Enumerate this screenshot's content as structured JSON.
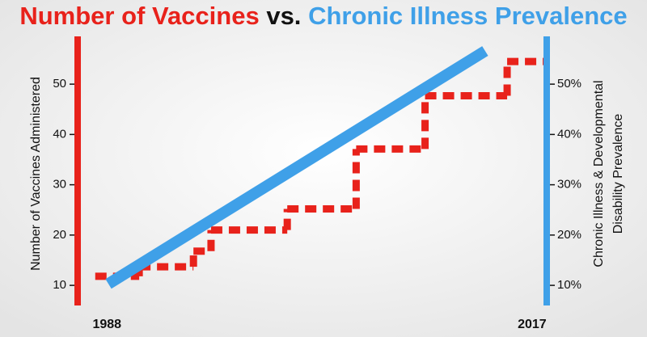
{
  "chart_data": {
    "type": "line",
    "title": [
      "Number of Vaccines",
      "vs.",
      "Chronic Illness Prevalence"
    ],
    "ylabel": "Number of Vaccines Administered",
    "y2label": [
      "Chronic Illness & Developmental",
      "Disability Prevalence"
    ],
    "xlim": [
      1986,
      2018
    ],
    "xticks": [
      1988,
      2017
    ],
    "ylim": [
      6,
      59.5
    ],
    "yticks": [
      10,
      20,
      30,
      40,
      50
    ],
    "y2lim": [
      6,
      59.5
    ],
    "y2ticks": [
      {
        "value": 10,
        "label": "10%"
      },
      {
        "value": 20,
        "label": "20%"
      },
      {
        "value": 30,
        "label": "30%"
      },
      {
        "value": 40,
        "label": "40%"
      },
      {
        "value": 50,
        "label": "50%"
      }
    ],
    "series": [
      {
        "name": "Number of Vaccines",
        "color": "#e8221b",
        "step": true,
        "x": [
          1987.2,
          1990.2,
          1993.9,
          1995.1,
          2000.3,
          2005.0,
          2009.7,
          2015.3
        ],
        "values": [
          11.8,
          13.7,
          16.8,
          21,
          25.2,
          37.1,
          47.7,
          54.5
        ]
      },
      {
        "name": "Chronic Illness Prevalence",
        "color": "#3fa0e8",
        "axis": "y2",
        "x": [
          1988.1,
          2013.8
        ],
        "values": [
          10.3,
          56.6
        ]
      }
    ]
  }
}
